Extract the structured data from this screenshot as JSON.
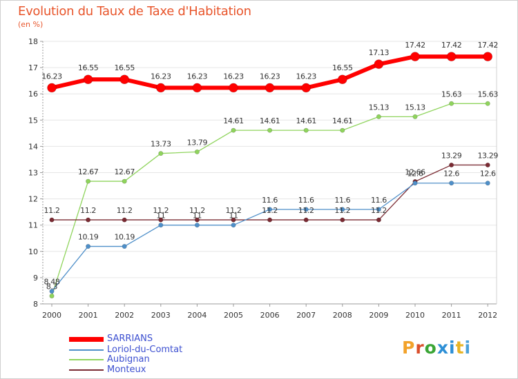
{
  "header": {
    "title": "Evolution du Taux de Taxe d'Habitation",
    "subtitle": "(en %)"
  },
  "logo": {
    "text": "Proxiti",
    "colors": [
      "#f2a22a",
      "#d94f2b",
      "#3aa535",
      "#2d8fd6",
      "#2d8fd6",
      "#e8b425",
      "#4aa1d8"
    ]
  },
  "chart_data": {
    "type": "line",
    "title": "Evolution du Taux de Taxe d'Habitation",
    "ylabel": "(en %)",
    "xlabel": "",
    "x": [
      "2000",
      "2001",
      "2002",
      "2003",
      "2004",
      "2005",
      "2006",
      "2007",
      "2008",
      "2009",
      "2010",
      "2011",
      "2012"
    ],
    "ylim": [
      8,
      18
    ],
    "yticks": [
      "8",
      "9",
      "10",
      "11",
      "12",
      "13",
      "14",
      "15",
      "16",
      "17",
      "18"
    ],
    "grid": "horizontal",
    "legend_position": "bottom-left",
    "series": [
      {
        "name": "SARRIANS",
        "color": "#ff0000",
        "values": [
          16.23,
          16.55,
          16.55,
          16.23,
          16.23,
          16.23,
          16.23,
          16.23,
          16.55,
          17.13,
          17.42,
          17.42,
          17.42
        ],
        "labels": [
          "16.23",
          "16.55",
          "16.55",
          "16.23",
          "16.23",
          "16.23",
          "16.23",
          "16.23",
          "16.55",
          "17.13",
          "17.42",
          "17.42",
          "17.42"
        ]
      },
      {
        "name": "Loriol-du-Comtat",
        "color": "#4e8fc9",
        "values": [
          8.48,
          10.19,
          10.19,
          11.0,
          11.0,
          11.0,
          11.6,
          11.6,
          11.6,
          11.6,
          12.6,
          12.6,
          12.6
        ],
        "labels": [
          "8.48",
          "10.19",
          "10.19",
          "11",
          "11",
          "11",
          "11.6",
          "11.6",
          "11.6",
          "11.6",
          "12.6",
          "12.6",
          "12.6"
        ]
      },
      {
        "name": "Aubignan",
        "color": "#8fd45c",
        "values": [
          8.3,
          12.67,
          12.67,
          13.73,
          13.79,
          14.61,
          14.61,
          14.61,
          14.61,
          15.13,
          15.13,
          15.63,
          15.63
        ],
        "labels": [
          "8.3",
          "12.67",
          "12.67",
          "13.73",
          "13.79",
          "14.61",
          "14.61",
          "14.61",
          "14.61",
          "15.13",
          "15.13",
          "15.63",
          "15.63"
        ]
      },
      {
        "name": "Monteux",
        "color": "#7a2a32",
        "values": [
          11.2,
          11.2,
          11.2,
          11.2,
          11.2,
          11.2,
          11.2,
          11.2,
          11.2,
          11.2,
          12.66,
          13.29,
          13.29
        ],
        "labels": [
          "11.2",
          "11.2",
          "11.2",
          "11.2",
          "11.2",
          "11.2",
          "11.2",
          "11.2",
          "11.2",
          "11.2",
          "12.66",
          "13.29",
          "13.29"
        ]
      }
    ]
  }
}
